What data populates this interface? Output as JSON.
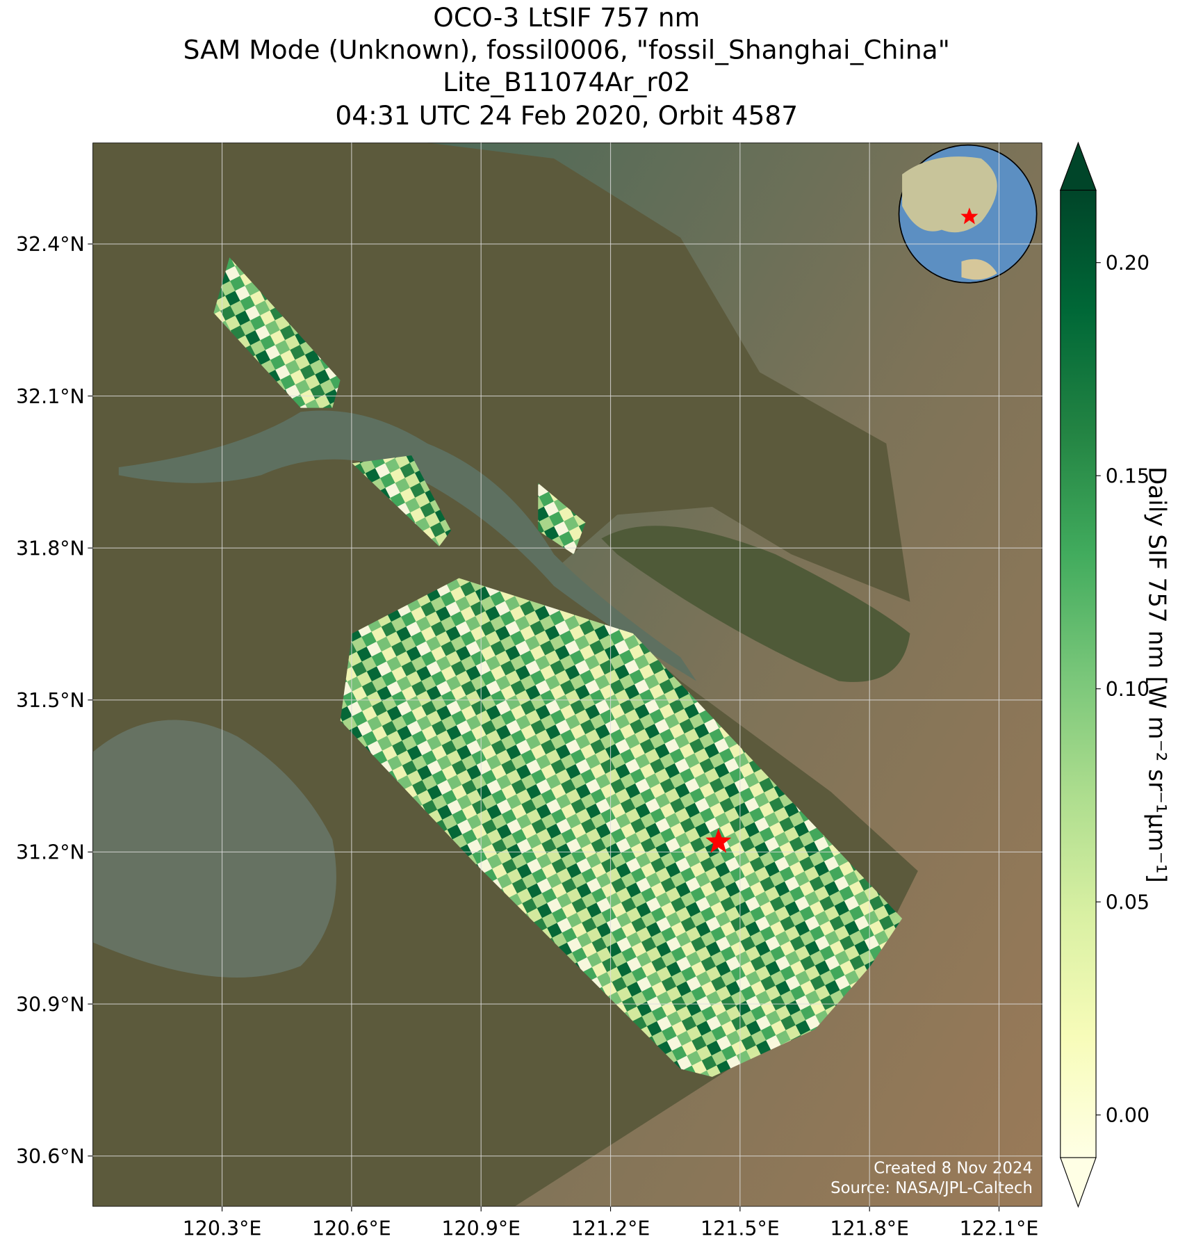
{
  "chart_data": {
    "type": "map",
    "title": [
      "OCO-3 LtSIF 757 nm",
      "SAM Mode (Unknown), fossil0006, \"fossil_Shanghai_China\"",
      "Lite_B11074Ar_r02",
      "04:31 UTC 24 Feb 2020, Orbit 4587"
    ],
    "xlim": [
      120.0,
      122.2
    ],
    "ylim": [
      30.5,
      32.6
    ],
    "xticks": [
      {
        "value": 120.3,
        "label": "120.3°E"
      },
      {
        "value": 120.6,
        "label": "120.6°E"
      },
      {
        "value": 120.9,
        "label": "120.9°E"
      },
      {
        "value": 121.2,
        "label": "121.2°E"
      },
      {
        "value": 121.5,
        "label": "121.5°E"
      },
      {
        "value": 121.8,
        "label": "121.8°E"
      },
      {
        "value": 122.1,
        "label": "122.1°E"
      }
    ],
    "yticks": [
      {
        "value": 30.6,
        "label": "30.6°N"
      },
      {
        "value": 30.9,
        "label": "30.9°N"
      },
      {
        "value": 31.2,
        "label": "31.2°N"
      },
      {
        "value": 31.5,
        "label": "31.5°N"
      },
      {
        "value": 31.8,
        "label": "31.8°N"
      },
      {
        "value": 32.1,
        "label": "32.1°N"
      },
      {
        "value": 32.4,
        "label": "32.4°N"
      }
    ],
    "grid": true,
    "target": {
      "lon": 121.45,
      "lat": 31.22,
      "color": "#ff0000"
    },
    "colorbar": {
      "label": "Daily SIF 757 nm [W m⁻² sr⁻¹µm⁻¹]",
      "clim": [
        -0.01,
        0.217
      ],
      "ticks": [
        {
          "value": 0,
          "label": "0.00"
        },
        {
          "value": 0.05,
          "label": "0.05"
        },
        {
          "value": 0.1,
          "label": "0.10"
        },
        {
          "value": 0.15,
          "label": "0.15"
        },
        {
          "value": 0.2,
          "label": "0.20"
        }
      ],
      "colormap": [
        "#ffffe5",
        "#f7fcb9",
        "#d9f0a3",
        "#addd8e",
        "#78c679",
        "#41ab5d",
        "#238443",
        "#006837",
        "#004529"
      ],
      "extend": "both"
    },
    "credits": [
      "Created 8 Nov 2024",
      "Source: NASA/JPL-Caltech"
    ]
  }
}
